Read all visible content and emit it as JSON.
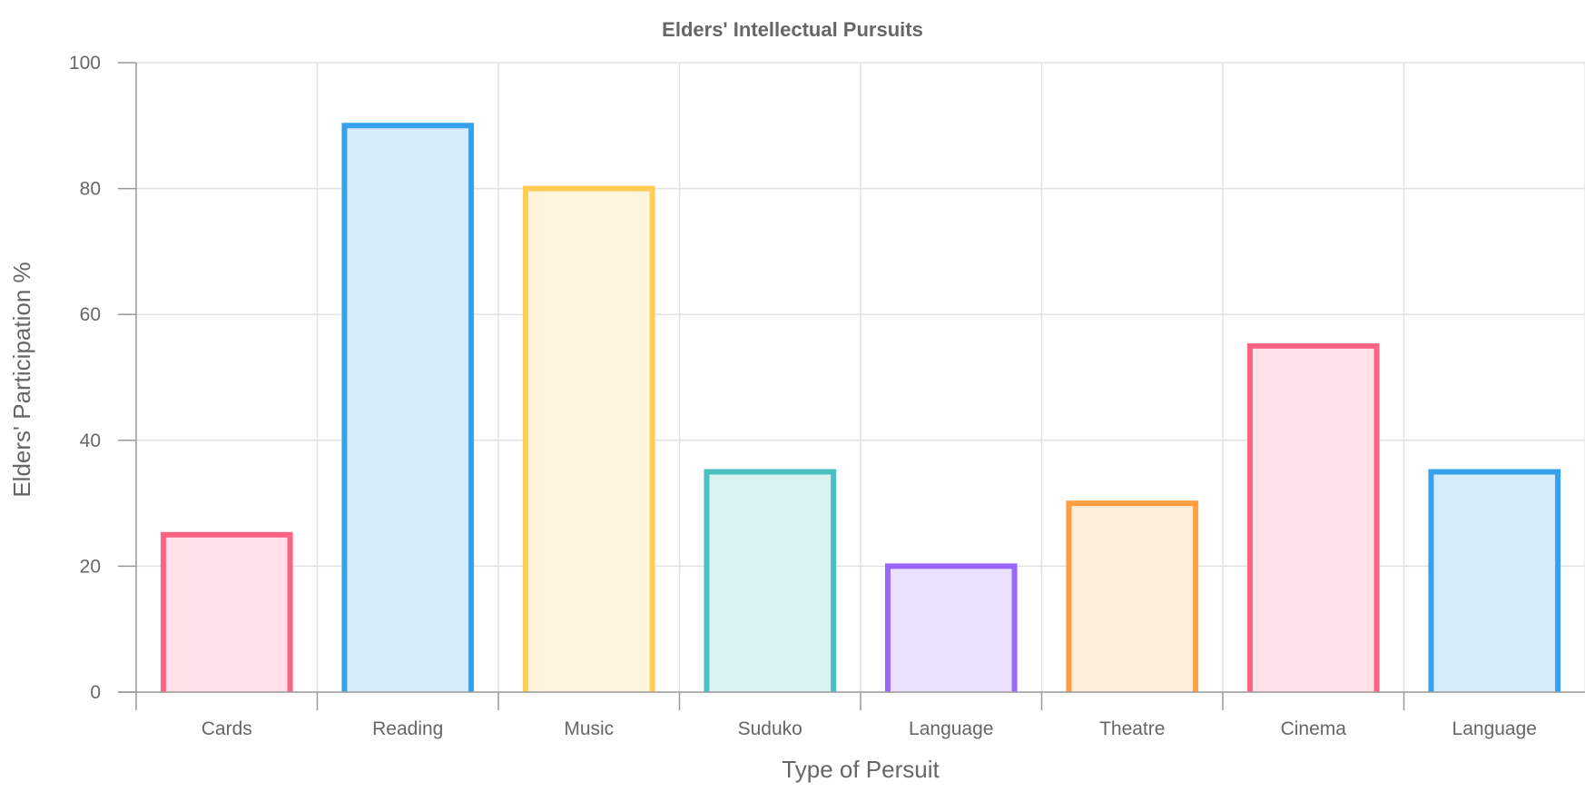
{
  "chart_data": {
    "type": "bar",
    "title": "Elders' Intellectual Pursuits",
    "xlabel": "Type of Persuit",
    "ylabel": "Elders' Participation %",
    "categories": [
      "Cards",
      "Reading",
      "Music",
      "Suduko",
      "Language",
      "Theatre",
      "Cinema",
      "Language"
    ],
    "values": [
      25,
      90,
      80,
      35,
      20,
      30,
      55,
      35
    ],
    "ylim": [
      0,
      100
    ],
    "yticks": [
      0,
      20,
      40,
      60,
      80,
      100
    ],
    "grid": true,
    "legend": "none",
    "bar_colors": [
      {
        "border": "#ff6384",
        "fill": "#ffe0e6"
      },
      {
        "border": "#36a2eb",
        "fill": "#d7ecfb"
      },
      {
        "border": "#ffcd56",
        "fill": "#fff5dd"
      },
      {
        "border": "#4bc0c0",
        "fill": "#dbf2f2"
      },
      {
        "border": "#9966ff",
        "fill": "#ebe0ff"
      },
      {
        "border": "#ff9f40",
        "fill": "#ffecd9"
      },
      {
        "border": "#ff6384",
        "fill": "#ffe0e6"
      },
      {
        "border": "#36a2eb",
        "fill": "#d7ecfb"
      }
    ]
  }
}
